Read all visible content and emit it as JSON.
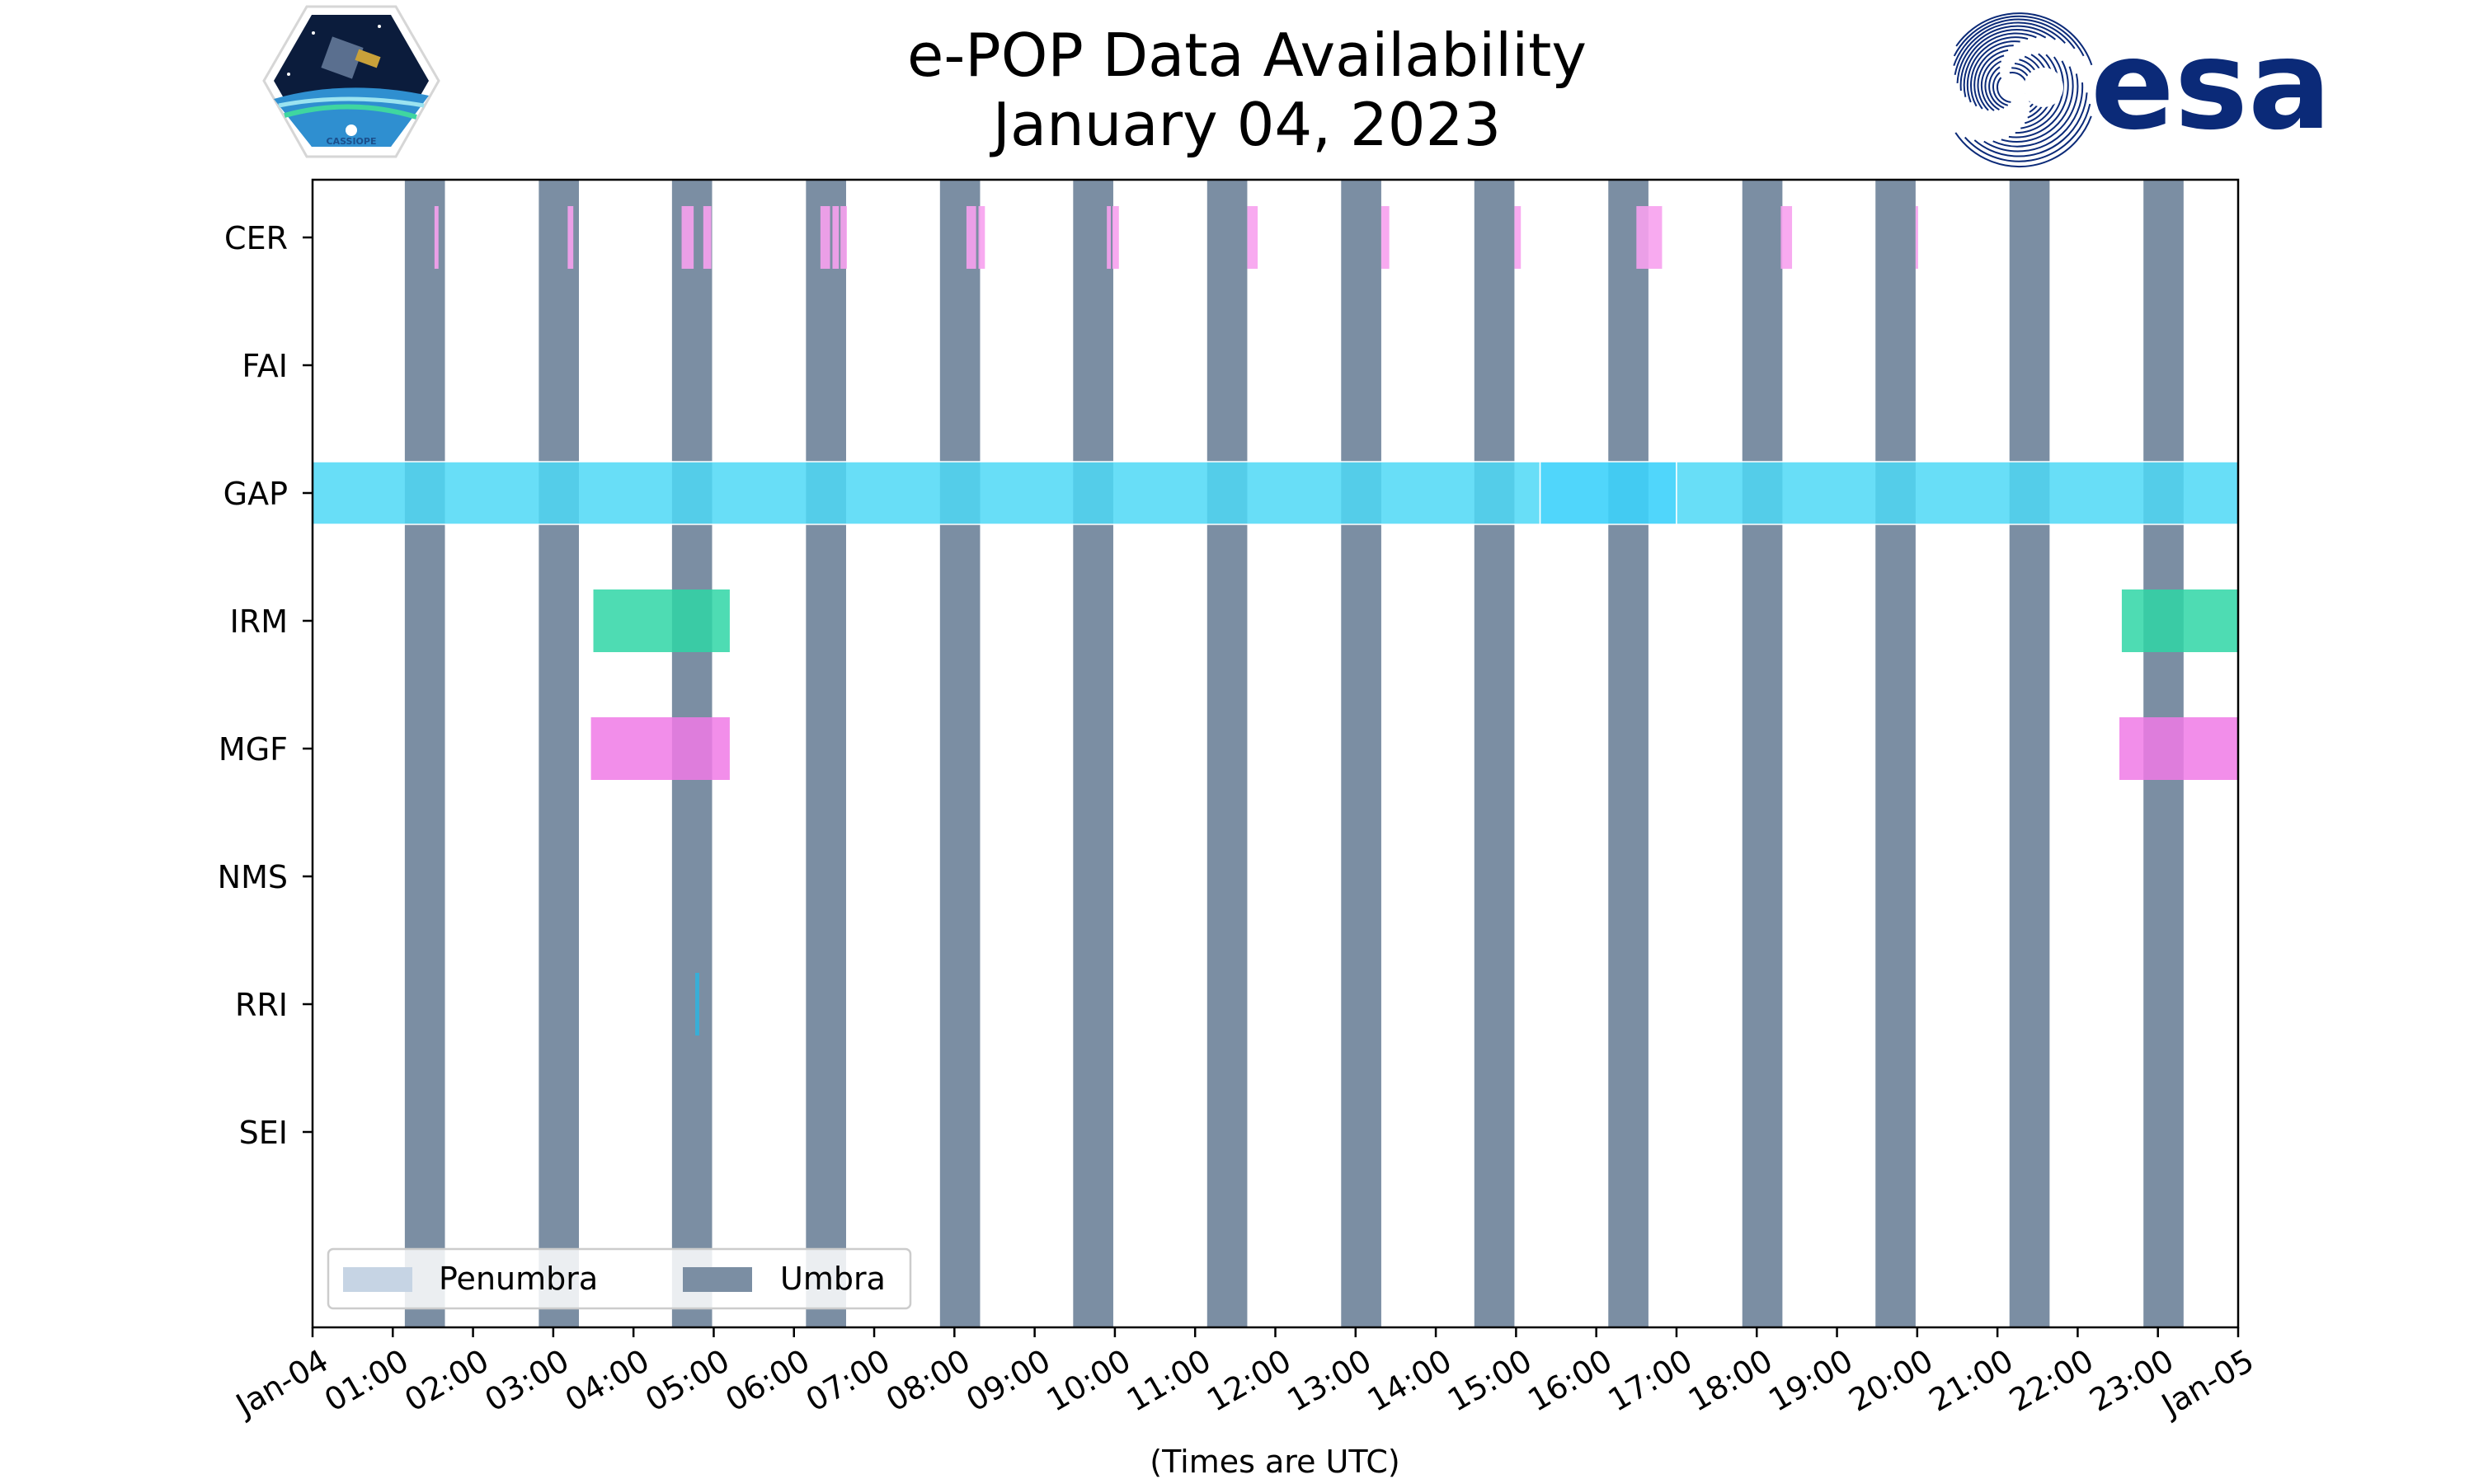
{
  "chart_data": {
    "type": "timeline",
    "title_line1": "e-POP Data Availability",
    "title_line2": "January 04, 2023",
    "xlabel": "(Times are UTC)",
    "x_range_hours": [
      0,
      24
    ],
    "x_ticks": [
      {
        "hour": 0,
        "label": "Jan-04"
      },
      {
        "hour": 1,
        "label": "01:00"
      },
      {
        "hour": 2,
        "label": "02:00"
      },
      {
        "hour": 3,
        "label": "03:00"
      },
      {
        "hour": 4,
        "label": "04:00"
      },
      {
        "hour": 5,
        "label": "05:00"
      },
      {
        "hour": 6,
        "label": "06:00"
      },
      {
        "hour": 7,
        "label": "07:00"
      },
      {
        "hour": 8,
        "label": "08:00"
      },
      {
        "hour": 9,
        "label": "09:00"
      },
      {
        "hour": 10,
        "label": "10:00"
      },
      {
        "hour": 11,
        "label": "11:00"
      },
      {
        "hour": 12,
        "label": "12:00"
      },
      {
        "hour": 13,
        "label": "13:00"
      },
      {
        "hour": 14,
        "label": "14:00"
      },
      {
        "hour": 15,
        "label": "15:00"
      },
      {
        "hour": 16,
        "label": "16:00"
      },
      {
        "hour": 17,
        "label": "17:00"
      },
      {
        "hour": 18,
        "label": "18:00"
      },
      {
        "hour": 19,
        "label": "19:00"
      },
      {
        "hour": 20,
        "label": "20:00"
      },
      {
        "hour": 21,
        "label": "21:00"
      },
      {
        "hour": 22,
        "label": "22:00"
      },
      {
        "hour": 23,
        "label": "23:00"
      },
      {
        "hour": 24,
        "label": "Jan-05"
      }
    ],
    "instruments": [
      "CER",
      "FAI",
      "GAP",
      "IRM",
      "MGF",
      "NMS",
      "RRI",
      "SEI"
    ],
    "colors": {
      "CER": "#f7a1ee",
      "GAP": "#4ed8f6",
      "GAP_dark": "#3dd2fb",
      "IRM": "#2fd6a6",
      "MGF": "#f07ae6",
      "RRI": "#2bb4e0",
      "umbra": "#7b8ea3",
      "penumbra": "#c6d4e4"
    },
    "umbra_intervals": [
      [
        1.15,
        1.65
      ],
      [
        2.82,
        3.32
      ],
      [
        4.48,
        4.98
      ],
      [
        6.15,
        6.65
      ],
      [
        7.82,
        8.32
      ],
      [
        9.48,
        9.98
      ],
      [
        11.15,
        11.65
      ],
      [
        12.82,
        13.32
      ],
      [
        14.48,
        14.98
      ],
      [
        16.15,
        16.65
      ],
      [
        17.82,
        18.32
      ],
      [
        19.48,
        19.98
      ],
      [
        21.15,
        21.65
      ],
      [
        22.82,
        23.32
      ]
    ],
    "data_intervals": {
      "CER": [
        [
          1.52,
          1.57
        ],
        [
          3.18,
          3.25
        ],
        [
          4.6,
          4.75
        ],
        [
          4.87,
          4.97
        ],
        [
          6.33,
          6.45
        ],
        [
          6.48,
          6.56
        ],
        [
          6.58,
          6.66
        ],
        [
          8.15,
          8.27
        ],
        [
          8.3,
          8.38
        ],
        [
          9.9,
          9.95
        ],
        [
          9.97,
          10.05
        ],
        [
          11.65,
          11.78
        ],
        [
          13.32,
          13.42
        ],
        [
          14.98,
          15.06
        ],
        [
          16.5,
          16.82
        ],
        [
          18.3,
          18.44
        ],
        [
          19.98,
          20.01
        ]
      ],
      "FAI": [],
      "GAP": [
        [
          0,
          15.3
        ],
        [
          15.3,
          17.0
        ],
        [
          17.0,
          24
        ]
      ],
      "IRM": [
        [
          3.5,
          5.2
        ],
        [
          22.55,
          24
        ]
      ],
      "MGF": [
        [
          3.47,
          5.2
        ],
        [
          22.52,
          24
        ]
      ],
      "NMS": [],
      "RRI": [
        [
          4.77,
          4.82
        ]
      ],
      "SEI": []
    },
    "legend": [
      {
        "label": "Penumbra",
        "color_key": "penumbra"
      },
      {
        "label": "Umbra",
        "color_key": "umbra"
      }
    ]
  },
  "logos": {
    "esa_wordmark": "esa",
    "cassiope_label": "CASSIOPE"
  }
}
